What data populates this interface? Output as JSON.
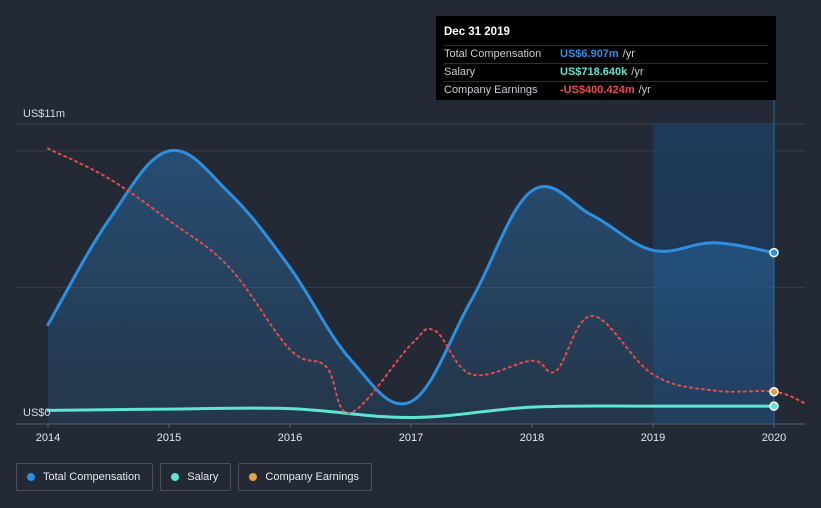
{
  "chart_data": {
    "type": "line",
    "y_axis": {
      "top_label": "US$11m",
      "bottom_label": "US$0",
      "ylim": [
        0,
        11
      ]
    },
    "x_ticks": [
      "2014",
      "2015",
      "2016",
      "2017",
      "2018",
      "2019",
      "2020"
    ],
    "series": [
      {
        "name": "Total Compensation",
        "color": "#2d8fe0",
        "style": "solid-area",
        "points": [
          [
            2014.0,
            4.0
          ],
          [
            2014.5,
            8.2
          ],
          [
            2015.0,
            11.0
          ],
          [
            2015.5,
            9.3
          ],
          [
            2016.0,
            6.3
          ],
          [
            2016.5,
            2.6
          ],
          [
            2017.0,
            0.9
          ],
          [
            2017.5,
            5.0
          ],
          [
            2018.0,
            9.4
          ],
          [
            2018.5,
            8.4
          ],
          [
            2019.0,
            7.0
          ],
          [
            2019.5,
            7.3
          ],
          [
            2020.0,
            6.907
          ]
        ]
      },
      {
        "name": "Salary",
        "color": "#5fe6d1",
        "style": "solid",
        "points": [
          [
            2014.0,
            0.55
          ],
          [
            2015.0,
            0.6
          ],
          [
            2016.0,
            0.62
          ],
          [
            2017.0,
            0.26
          ],
          [
            2018.0,
            0.68
          ],
          [
            2019.0,
            0.72
          ],
          [
            2020.0,
            0.7186
          ]
        ]
      },
      {
        "name": "Company Earnings",
        "color": "#e84b4b",
        "style": "dashed",
        "points": [
          [
            2014.0,
            11.1
          ],
          [
            2014.5,
            9.9
          ],
          [
            2015.0,
            8.2
          ],
          [
            2015.5,
            6.3
          ],
          [
            2016.0,
            3.0
          ],
          [
            2016.3,
            2.3
          ],
          [
            2016.5,
            0.45
          ],
          [
            2017.0,
            3.2
          ],
          [
            2017.2,
            3.75
          ],
          [
            2017.5,
            2.0
          ],
          [
            2018.0,
            2.55
          ],
          [
            2018.2,
            2.15
          ],
          [
            2018.5,
            4.35
          ],
          [
            2019.0,
            2.0
          ],
          [
            2019.5,
            1.35
          ],
          [
            2020.0,
            1.3
          ],
          [
            2020.25,
            0.85
          ]
        ]
      }
    ],
    "highlight_year": 2020,
    "legend_placement": "bottom-left",
    "grid": true
  },
  "tooltip": {
    "title": "Dec 31 2019",
    "rows": [
      {
        "name": "Total Compensation",
        "value": "US$6.907m",
        "unit": "/yr",
        "color": "#2d8fe0"
      },
      {
        "name": "Salary",
        "value": "US$718.640k",
        "unit": "/yr",
        "color": "#5fe6d1"
      },
      {
        "name": "Company Earnings",
        "value": "-US$400.424m",
        "unit": "/yr",
        "color": "#e84b4b"
      }
    ]
  },
  "legend": [
    {
      "label": "Total Compensation",
      "color": "#2d8fe0"
    },
    {
      "label": "Salary",
      "color": "#5fe6d1"
    },
    {
      "label": "Company Earnings",
      "color": "#e0a04a"
    }
  ]
}
